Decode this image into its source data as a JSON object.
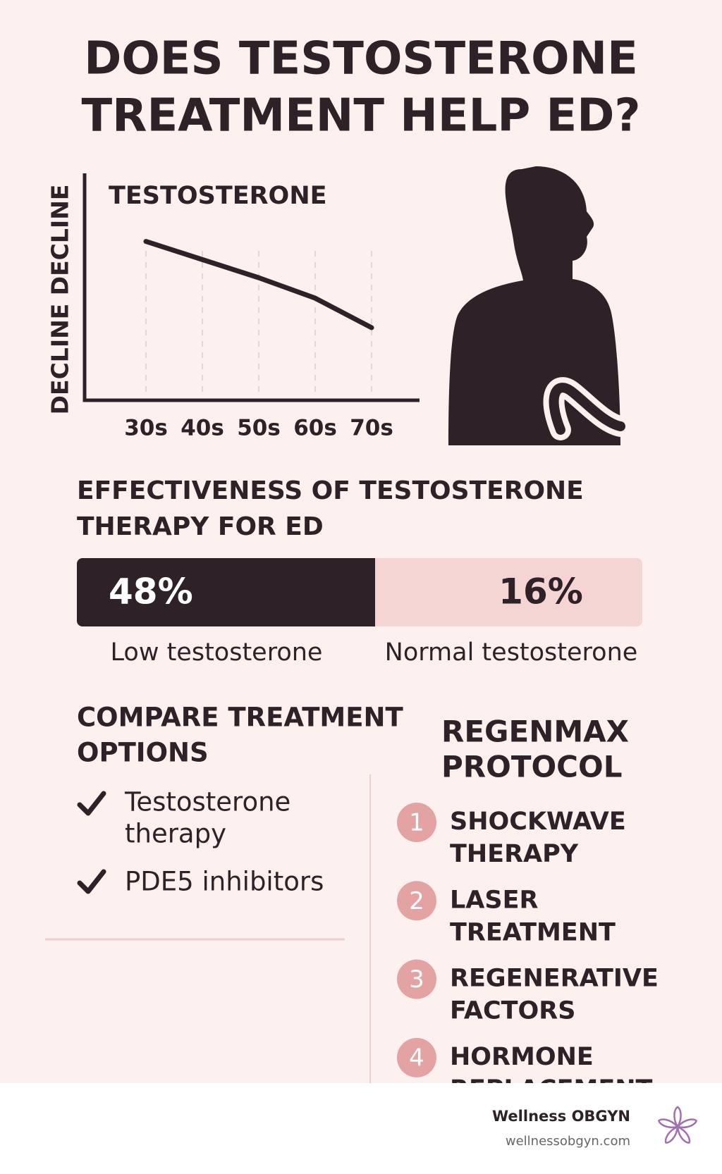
{
  "header": {
    "title_lines": [
      "DOES TESTOSTERONE",
      "TREATMENT HELP ED?"
    ]
  },
  "chart_data": {
    "type": "line",
    "title": "TESTOSTERONE",
    "y_label": "DECLINE DECLINE",
    "categories": [
      "30s",
      "40s",
      "50s",
      "60s",
      "70s"
    ],
    "values": [
      70,
      62,
      54,
      45,
      32
    ],
    "ylim": [
      0,
      100
    ],
    "color": "#2e2228",
    "grid": true
  },
  "effectiveness": {
    "title_lines": [
      "EFFECTIVENESS OF TESTOSTERONE",
      "THERAPY FOR ED"
    ],
    "items": [
      {
        "value": "48%",
        "label": "Low testosterone"
      },
      {
        "value": "16%",
        "label": "Normal testosterone"
      }
    ]
  },
  "compare": {
    "title_lines": [
      "COMPARE TREATMENT",
      "OPTIONS"
    ],
    "items": [
      [
        "Testosterone",
        "therapy"
      ],
      [
        "PDE5 inhibitors"
      ]
    ]
  },
  "protocol": {
    "title_lines": [
      "REGENMAX",
      "PROTOCOL"
    ],
    "steps": [
      {
        "number": "1",
        "lines": [
          "SHOCKWAVE",
          "THERAPY"
        ]
      },
      {
        "number": "2",
        "lines": [
          "LASER",
          "TREATMENT"
        ]
      },
      {
        "number": "3",
        "lines": [
          "REGENERATIVE",
          "FACTORS"
        ]
      },
      {
        "number": "4",
        "lines": [
          "HORMONE",
          "REPLACEMENT"
        ]
      }
    ]
  },
  "footer": {
    "brand": "Wellness OBGYN",
    "url": "wellnessobgyn.com"
  }
}
